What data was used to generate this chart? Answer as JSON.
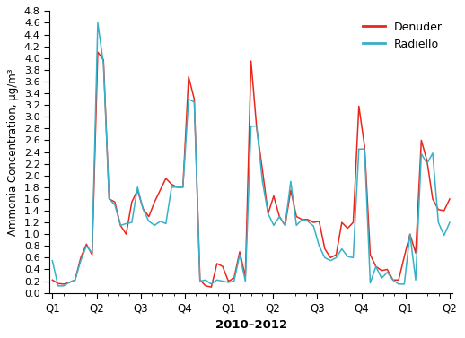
{
  "xlabel": "2010–2012",
  "ylabel": "Ammonia Concentration, μg/m³",
  "ylim": [
    0.0,
    4.8
  ],
  "ytick_step": 0.2,
  "ytick_label_step": 0.2,
  "xtick_labels": [
    "Q1",
    "Q2",
    "Q3",
    "Q4",
    "Q1",
    "Q2",
    "Q3",
    "Q4",
    "Q1",
    "Q2"
  ],
  "denuder_color": "#e8271b",
  "radiello_color": "#38b0c8",
  "linewidth": 1.1,
  "bg_color": "#f5f5f5",
  "denuder": [
    0.22,
    0.16,
    0.15,
    0.18,
    0.22,
    0.6,
    0.83,
    0.65,
    4.1,
    3.97,
    1.6,
    1.55,
    1.15,
    1.0,
    1.55,
    1.75,
    1.43,
    1.3,
    1.55,
    1.75,
    1.95,
    1.85,
    1.8,
    1.8,
    3.68,
    3.3,
    0.22,
    0.12,
    0.1,
    0.5,
    0.45,
    0.2,
    0.25,
    0.7,
    0.28,
    3.95,
    2.8,
    2.1,
    1.35,
    1.65,
    1.3,
    1.15,
    1.75,
    1.3,
    1.25,
    1.25,
    1.2,
    1.22,
    0.75,
    0.6,
    0.65,
    1.2,
    1.1,
    1.2,
    3.18,
    2.5,
    0.65,
    0.45,
    0.38,
    0.4,
    0.22,
    0.22,
    0.62,
    1.0,
    0.68,
    2.6,
    2.25,
    1.6,
    1.42,
    1.4,
    1.6
  ],
  "radiello": [
    0.55,
    0.12,
    0.12,
    0.18,
    0.22,
    0.55,
    0.8,
    0.68,
    4.6,
    3.9,
    1.6,
    1.5,
    1.15,
    1.18,
    1.2,
    1.8,
    1.42,
    1.22,
    1.15,
    1.22,
    1.18,
    1.8,
    1.8,
    1.8,
    3.3,
    3.25,
    0.2,
    0.22,
    0.15,
    0.22,
    0.2,
    0.18,
    0.2,
    0.65,
    0.2,
    2.84,
    2.84,
    1.9,
    1.35,
    1.15,
    1.3,
    1.15,
    1.9,
    1.15,
    1.25,
    1.22,
    1.14,
    0.8,
    0.6,
    0.55,
    0.6,
    0.75,
    0.62,
    0.6,
    2.45,
    2.45,
    0.17,
    0.45,
    0.25,
    0.35,
    0.22,
    0.15,
    0.15,
    1.0,
    0.22,
    2.37,
    2.2,
    2.38,
    1.2,
    0.98,
    1.2
  ]
}
